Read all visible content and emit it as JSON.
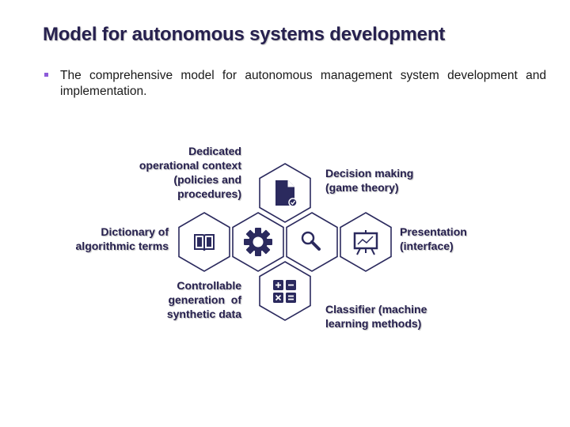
{
  "slide": {
    "title": "Model for autonomous systems development",
    "bullet": "The comprehensive model for autonomous management system development and implementation."
  },
  "diagram": {
    "labels": {
      "operational_context": "Dedicated\noperational context\n(policies and\nprocedures)",
      "decision_making": "Decision making\n(game theory)",
      "dictionary": "Dictionary of\nalgorithmic terms",
      "presentation": "Presentation\n(interface)",
      "synthetic_data": "Controllable\ngeneration  of\nsynthetic data",
      "classifier": "Classifier (machine\nlearning methods)"
    },
    "icons": [
      "document-check-icon",
      "book-icon",
      "gear-icon",
      "magnifier-icon",
      "presentation-board-icon",
      "calculator-icon"
    ],
    "colors": {
      "hex_stroke": "#2b2a5e",
      "icon_fill": "#2b2a5e",
      "title": "#27214f",
      "bullet_marker": "#8d5bd9"
    }
  }
}
